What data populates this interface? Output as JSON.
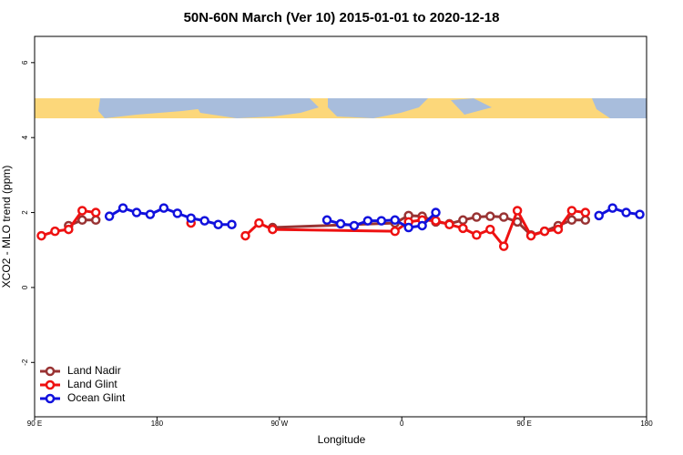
{
  "chart_data": {
    "type": "line",
    "title": "50N-60N March (Ver 10)   2015-01-01 to 2020-12-18",
    "x_label": "Longitude",
    "y_label": "XCO2 - MLO trend (ppm)",
    "xlim": [
      90,
      540
    ],
    "ylim": [
      -3.45,
      6.7
    ],
    "xticks": [
      {
        "value": 90,
        "label": "90 E"
      },
      180,
      {
        "value": 270,
        "label": "90 W"
      },
      {
        "value": 360,
        "label": "0"
      },
      {
        "value": 450,
        "label": "90 E"
      },
      {
        "value": 540,
        "label": "180"
      }
    ],
    "yticks": [
      -2,
      0,
      2,
      4,
      6
    ],
    "legend": "bottom-left",
    "series": [
      {
        "name": "Land Nadir",
        "color": "#993333",
        "x": [
          115,
          125,
          135,
          145,
          265,
          355,
          365,
          375,
          385,
          395,
          405,
          415,
          425,
          435,
          445,
          455,
          465,
          475,
          485,
          495
        ],
        "values": [
          1.65,
          1.8,
          1.8,
          null,
          1.6,
          1.72,
          1.92,
          1.9,
          1.75,
          1.7,
          1.8,
          1.88,
          1.9,
          1.88,
          1.75,
          1.4,
          1.5,
          1.65,
          1.8,
          1.8
        ]
      },
      {
        "name": "Land Glint",
        "color": "#ee1111",
        "x": [
          95,
          105,
          115,
          125,
          135,
          145,
          205,
          215,
          245,
          255,
          265,
          355,
          365,
          375,
          385,
          395,
          405,
          415,
          425,
          435,
          445,
          455,
          465,
          475,
          485,
          495
        ],
        "values": [
          1.38,
          1.5,
          1.55,
          2.05,
          2.0,
          null,
          1.72,
          null,
          1.38,
          1.72,
          1.55,
          1.5,
          1.75,
          1.8,
          1.78,
          1.68,
          1.58,
          1.4,
          1.55,
          1.1,
          2.05,
          1.38,
          1.5,
          1.55,
          2.05,
          2.0
        ]
      },
      {
        "name": "Ocean Glint",
        "color": "#1111dd",
        "x": [
          145,
          155,
          165,
          175,
          185,
          195,
          205,
          215,
          225,
          235,
          245,
          305,
          315,
          325,
          335,
          345,
          355,
          365,
          375,
          385,
          395,
          505,
          515,
          525,
          535
        ],
        "values": [
          1.9,
          2.12,
          2.0,
          1.95,
          2.12,
          1.98,
          1.85,
          1.78,
          1.68,
          1.68,
          null,
          1.8,
          1.7,
          1.65,
          1.78,
          1.78,
          1.8,
          1.6,
          1.65,
          2.0,
          null,
          1.92,
          2.12,
          2.0,
          1.95
        ]
      }
    ]
  }
}
